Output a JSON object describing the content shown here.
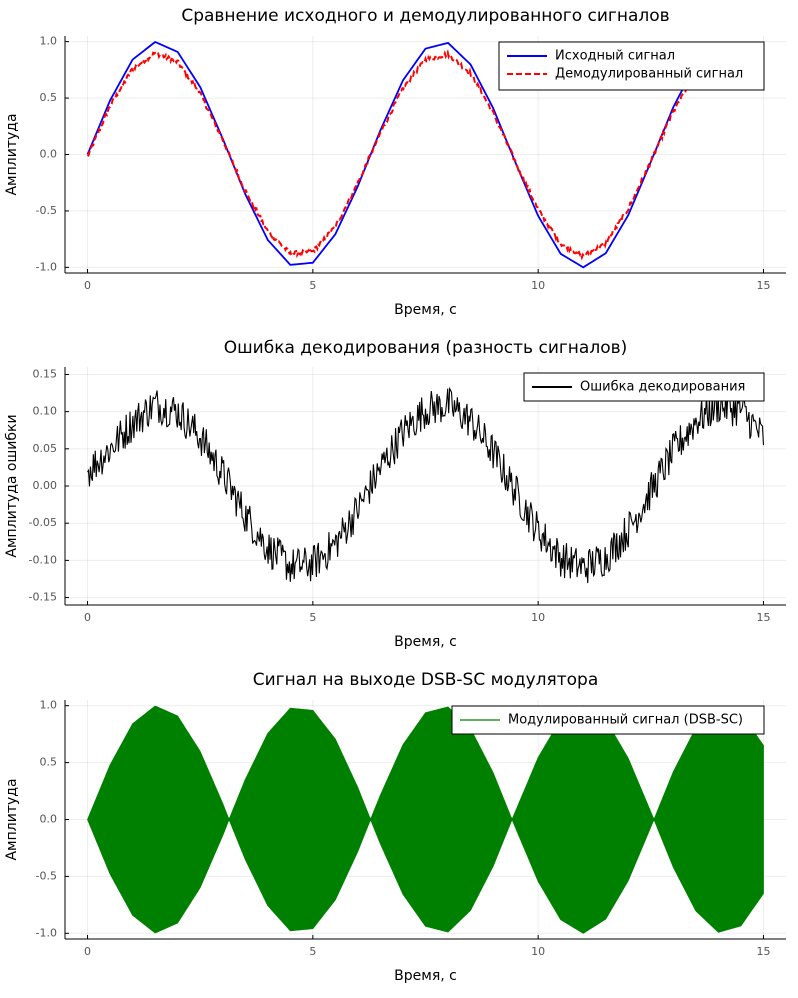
{
  "chart_data": [
    {
      "type": "line",
      "title": "Сравнение исходного и демодулированного сигналов",
      "xlabel": "Время, с",
      "ylabel": "Амплитуда",
      "xlim": [
        -0.5,
        15.5
      ],
      "ylim": [
        -1.05,
        1.05
      ],
      "xticks": [
        0,
        5,
        10,
        15
      ],
      "xtick_labels": [
        "0",
        "5",
        "10",
        "15"
      ],
      "yticks": [
        -1.0,
        -0.5,
        0.0,
        0.5,
        1.0
      ],
      "ytick_labels": [
        "-1.0",
        "-0.5",
        "0.0",
        "0.5",
        "1.0"
      ],
      "grid": true,
      "legend_position": "top-right",
      "series": [
        {
          "name": "Исходный сигнал",
          "color": "#0000ff",
          "dash": "solid",
          "x": [
            0,
            0.5,
            1,
            1.5,
            2,
            2.5,
            3,
            3.5,
            4,
            4.5,
            5,
            5.5,
            6,
            6.5,
            7,
            7.5,
            8,
            8.5,
            9,
            9.5,
            10,
            10.5,
            11,
            11.5,
            12,
            12.5,
            13,
            13.5,
            14,
            14.5,
            15
          ],
          "y": [
            0,
            0.479,
            0.841,
            0.997,
            0.909,
            0.598,
            0.141,
            -0.351,
            -0.757,
            -0.978,
            -0.959,
            -0.706,
            -0.279,
            0.215,
            0.657,
            0.938,
            0.989,
            0.798,
            0.412,
            -0.075,
            -0.544,
            -0.88,
            -1.0,
            -0.875,
            -0.537,
            -0.066,
            0.42,
            0.804,
            0.991,
            0.935,
            0.65
          ]
        },
        {
          "name": "Демодулированный сигнал",
          "color": "#ff0000",
          "dash": "dashed",
          "x": [
            0,
            0.5,
            1,
            1.5,
            2,
            2.5,
            3,
            3.5,
            4,
            4.5,
            5,
            5.5,
            6,
            6.5,
            7,
            7.5,
            8,
            8.5,
            9,
            9.5,
            10,
            10.5,
            11,
            11.5,
            12,
            12.5,
            13,
            13.5,
            14,
            14.5,
            15
          ],
          "y": [
            -0.02,
            0.43,
            0.76,
            0.9,
            0.82,
            0.54,
            0.13,
            -0.32,
            -0.68,
            -0.88,
            -0.86,
            -0.64,
            -0.25,
            0.19,
            0.59,
            0.84,
            0.89,
            0.72,
            0.37,
            -0.07,
            -0.49,
            -0.79,
            -0.9,
            -0.79,
            -0.48,
            -0.06,
            0.38,
            0.72,
            0.89,
            0.84,
            0.61
          ]
        }
      ]
    },
    {
      "type": "line",
      "title": "Ошибка декодирования (разность сигналов)",
      "xlabel": "Время, с",
      "ylabel": "Амплитуда ошибки",
      "xlim": [
        -0.5,
        15.5
      ],
      "ylim": [
        -0.16,
        0.16
      ],
      "xticks": [
        0,
        5,
        10,
        15
      ],
      "xtick_labels": [
        "0",
        "5",
        "10",
        "15"
      ],
      "yticks": [
        -0.15,
        -0.1,
        -0.05,
        0.0,
        0.05,
        0.1,
        0.15
      ],
      "ytick_labels": [
        "-0.15",
        "-0.10",
        "-0.05",
        "0.00",
        "0.05",
        "0.10",
        "0.15"
      ],
      "grid": true,
      "legend_position": "top-right",
      "series": [
        {
          "name": "Ошибка декодирования",
          "color": "#000000",
          "dash": "solid",
          "x": [
            0,
            0.5,
            1,
            1.5,
            2,
            2.5,
            3,
            3.5,
            4,
            4.5,
            5,
            5.5,
            6,
            6.5,
            7,
            7.5,
            8,
            8.5,
            9,
            9.5,
            10,
            10.5,
            11,
            11.5,
            12,
            12.5,
            13,
            13.5,
            14,
            14.5,
            15
          ],
          "y": [
            0.02,
            0.05,
            0.085,
            0.11,
            0.1,
            0.066,
            0.016,
            -0.039,
            -0.083,
            -0.108,
            -0.105,
            -0.078,
            -0.031,
            0.024,
            0.072,
            0.103,
            0.109,
            0.088,
            0.045,
            -0.008,
            -0.06,
            -0.097,
            -0.11,
            -0.096,
            -0.059,
            -0.007,
            0.046,
            0.088,
            0.109,
            0.103,
            0.065
          ],
          "noise_amplitude": 0.025
        }
      ]
    },
    {
      "type": "area",
      "title": "Сигнал на выходе DSB-SC модулятора",
      "xlabel": "Время, с",
      "ylabel": "Амплитуда",
      "xlim": [
        -0.5,
        15.5
      ],
      "ylim": [
        -1.05,
        1.05
      ],
      "xticks": [
        0,
        5,
        10,
        15
      ],
      "xtick_labels": [
        "0",
        "5",
        "10",
        "15"
      ],
      "yticks": [
        -1.0,
        -0.5,
        0.0,
        0.5,
        1.0
      ],
      "ytick_labels": [
        "-1.0",
        "-0.5",
        "0.0",
        "0.5",
        "1.0"
      ],
      "grid": true,
      "legend_position": "top-right",
      "series": [
        {
          "name": "Модулированный сигнал (DSB-SC)",
          "color": "#008000",
          "envelope_x": [
            0,
            0.5,
            1,
            1.5,
            2,
            2.5,
            3,
            3.14,
            3.5,
            4,
            4.5,
            5,
            5.5,
            6,
            6.28,
            6.5,
            7,
            7.5,
            8,
            8.5,
            9,
            9.42,
            9.5,
            10,
            10.5,
            11,
            11.5,
            12,
            12.5,
            12.57,
            13,
            13.5,
            14,
            14.5,
            15
          ],
          "envelope_y": [
            0,
            0.479,
            0.841,
            0.997,
            0.909,
            0.598,
            0.141,
            0,
            0.351,
            0.757,
            0.978,
            0.959,
            0.706,
            0.279,
            0,
            0.215,
            0.657,
            0.938,
            0.989,
            0.798,
            0.412,
            0,
            0.075,
            0.544,
            0.88,
            1.0,
            0.875,
            0.537,
            0.066,
            0,
            0.42,
            0.804,
            0.991,
            0.935,
            0.65
          ]
        }
      ]
    }
  ]
}
